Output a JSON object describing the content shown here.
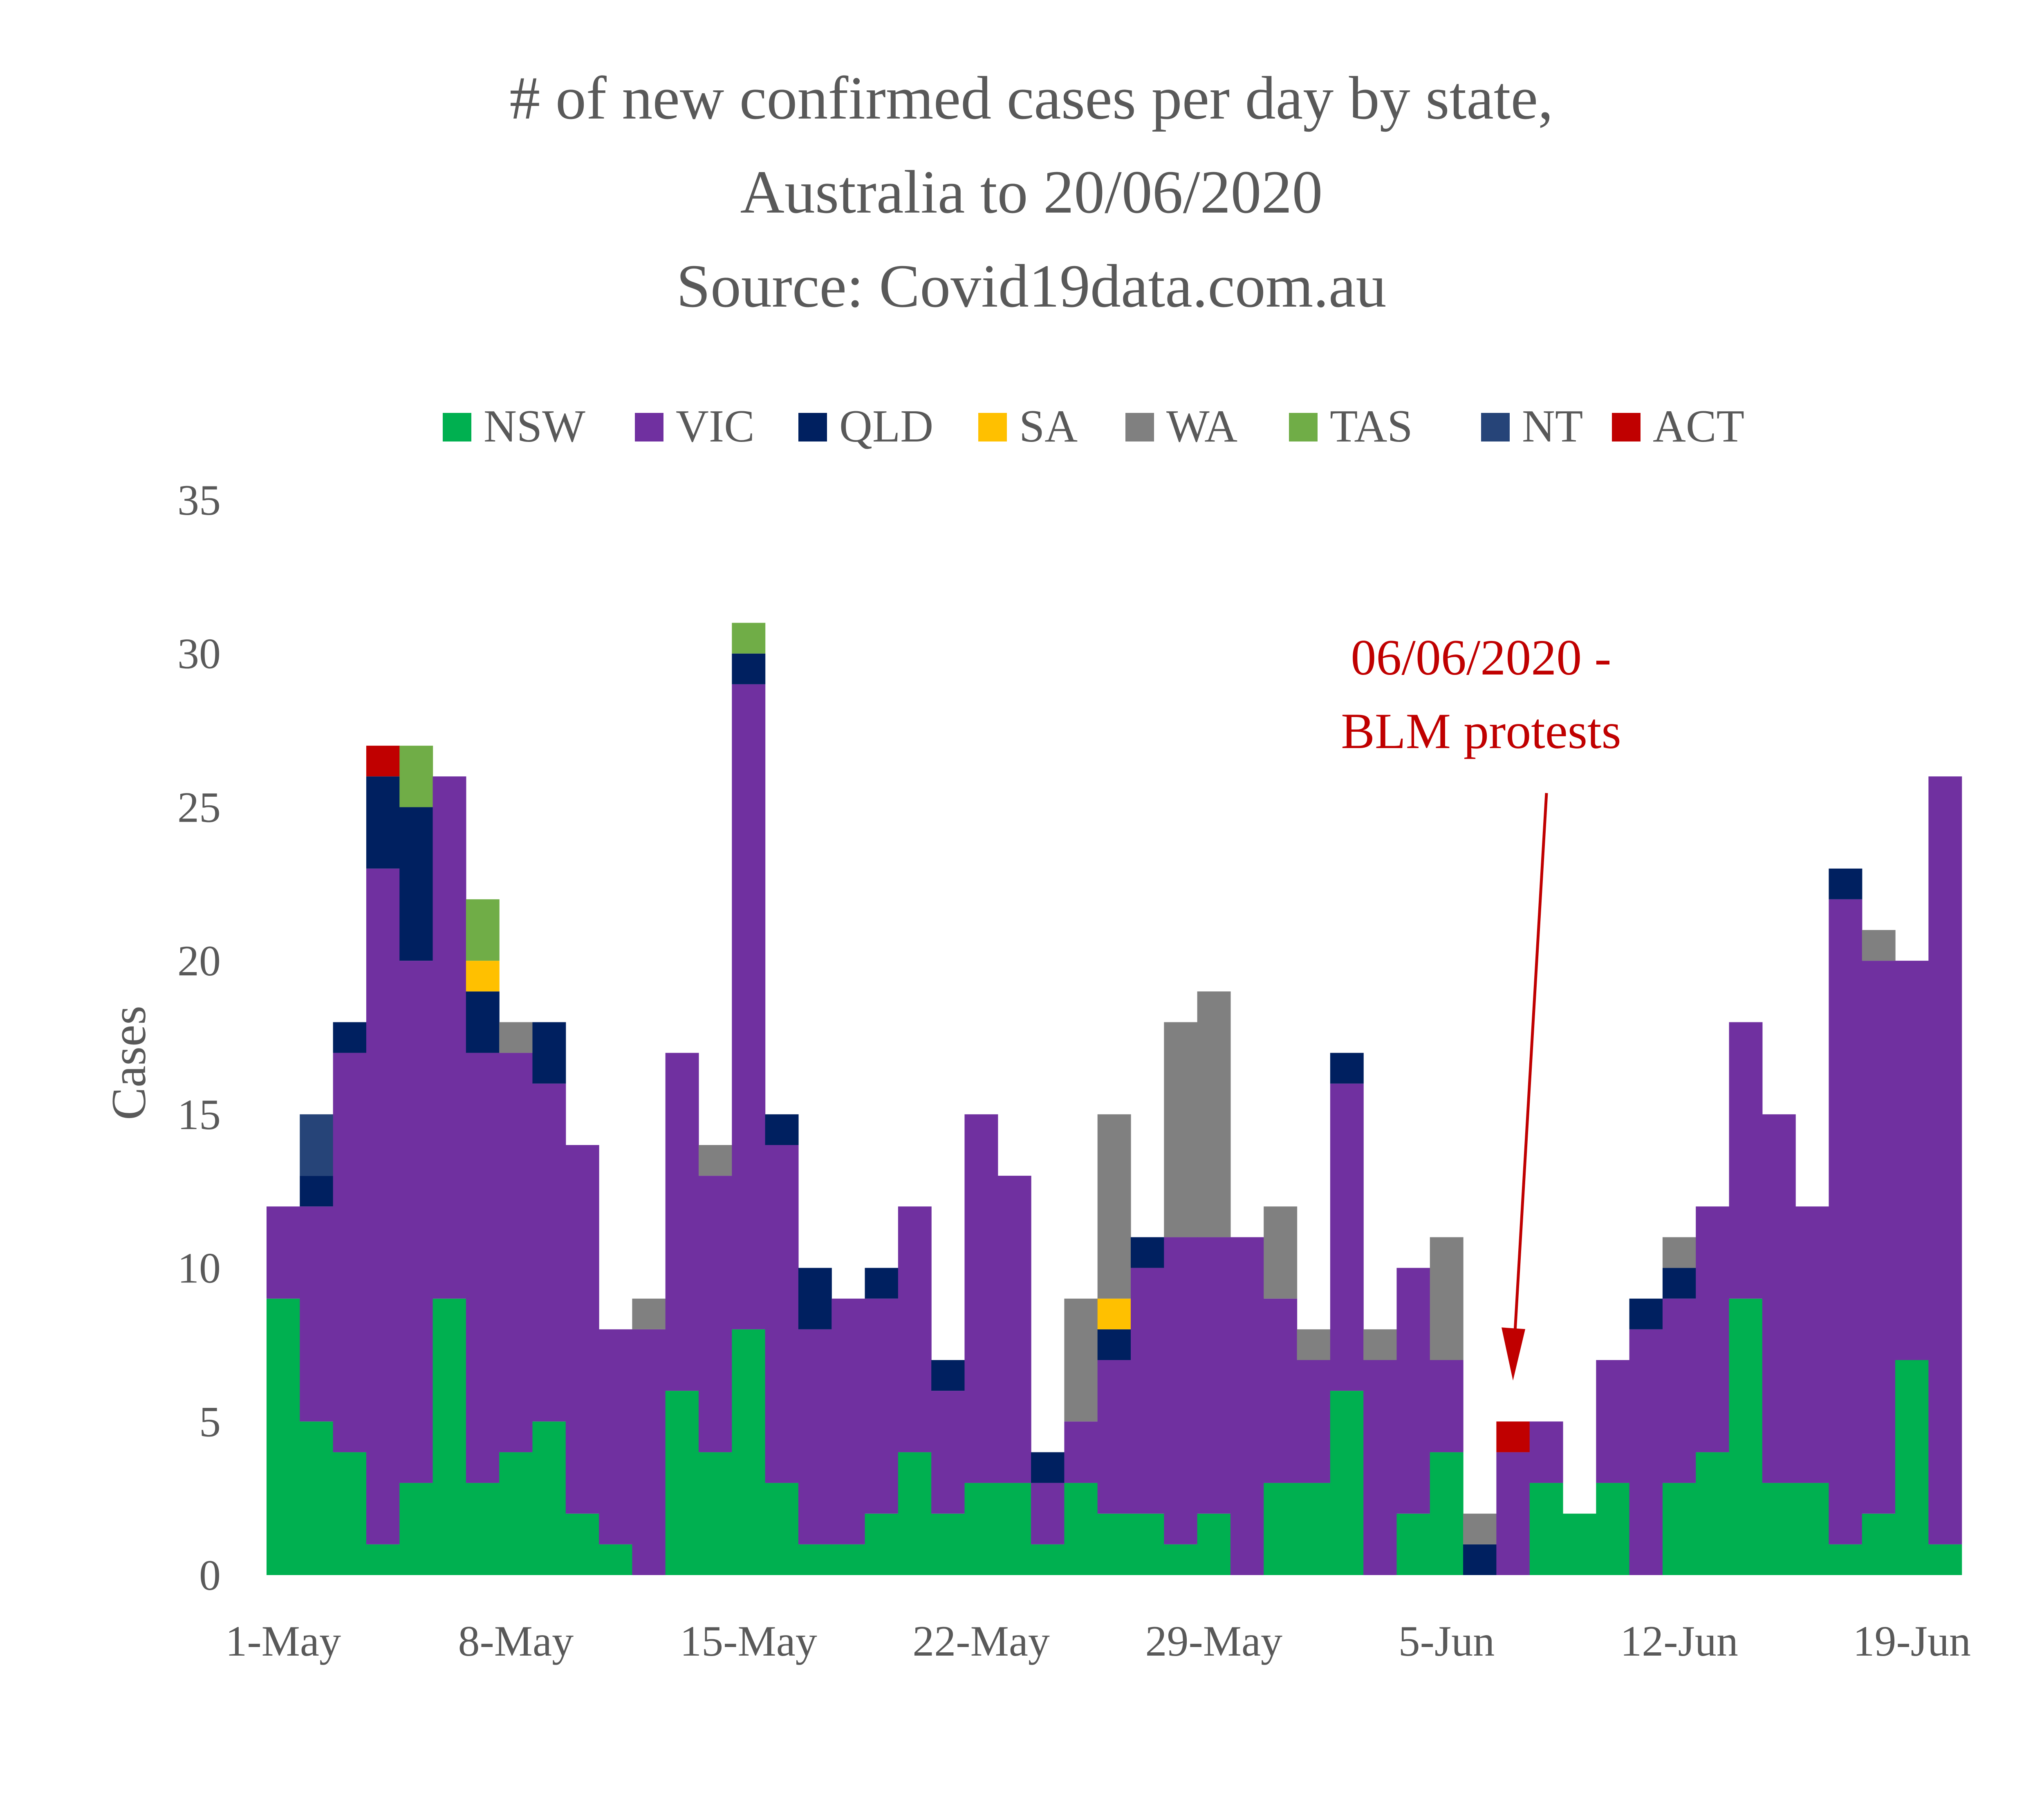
{
  "chart_data": {
    "type": "bar",
    "stacked": true,
    "title_lines": [
      "# of new confirmed cases per day by state,",
      "Australia to 20/06/2020",
      "Source: Covid19data.com.au"
    ],
    "ylabel": "Cases",
    "xlabel": "",
    "ylim": [
      0,
      35
    ],
    "yticks": [
      0,
      5,
      10,
      15,
      20,
      25,
      30,
      35
    ],
    "legend_position": "top",
    "x_tick_labels": [
      "1-May",
      "8-May",
      "15-May",
      "22-May",
      "29-May",
      "5-Jun",
      "12-Jun",
      "19-Jun"
    ],
    "x_tick_day_index": [
      0,
      7,
      14,
      21,
      28,
      35,
      42,
      49
    ],
    "categories": [
      "1-May",
      "2-May",
      "3-May",
      "4-May",
      "5-May",
      "6-May",
      "7-May",
      "8-May",
      "9-May",
      "10-May",
      "11-May",
      "12-May",
      "13-May",
      "14-May",
      "15-May",
      "16-May",
      "17-May",
      "18-May",
      "19-May",
      "20-May",
      "21-May",
      "22-May",
      "23-May",
      "24-May",
      "25-May",
      "26-May",
      "27-May",
      "28-May",
      "29-May",
      "30-May",
      "31-May",
      "1-Jun",
      "2-Jun",
      "3-Jun",
      "4-Jun",
      "5-Jun",
      "6-Jun",
      "7-Jun",
      "8-Jun",
      "9-Jun",
      "10-Jun",
      "11-Jun",
      "12-Jun",
      "13-Jun",
      "14-Jun",
      "15-Jun",
      "16-Jun",
      "17-Jun",
      "18-Jun",
      "19-Jun",
      "20-Jun",
      "21-Jun"
    ],
    "series": [
      {
        "name": "NSW",
        "color": "#00b050",
        "values": [
          9,
          5,
          4,
          1,
          3,
          9,
          3,
          4,
          5,
          2,
          1,
          0,
          6,
          4,
          8,
          3,
          1,
          1,
          2,
          4,
          2,
          3,
          3,
          1,
          3,
          2,
          2,
          1,
          2,
          0,
          3,
          3,
          6,
          0,
          2,
          4,
          0,
          0,
          3,
          2,
          3,
          0,
          3,
          4,
          9,
          3,
          3,
          1,
          2,
          7,
          1,
          0
        ]
      },
      {
        "name": "VIC",
        "color": "#7030a0",
        "values": [
          3,
          7,
          13,
          22,
          17,
          17,
          14,
          13,
          11,
          12,
          7,
          8,
          11,
          9,
          21,
          11,
          7,
          8,
          7,
          8,
          4,
          12,
          10,
          2,
          2,
          5,
          8,
          10,
          9,
          11,
          6,
          4,
          10,
          7,
          8,
          3,
          0,
          4,
          2,
          0,
          4,
          8,
          6,
          8,
          9,
          12,
          9,
          21,
          18,
          13,
          25,
          0
        ]
      },
      {
        "name": "QLD",
        "color": "#002060",
        "values": [
          0,
          1,
          1,
          3,
          5,
          0,
          2,
          0,
          2,
          0,
          0,
          0,
          0,
          0,
          1,
          1,
          2,
          0,
          1,
          0,
          1,
          0,
          0,
          1,
          0,
          1,
          1,
          0,
          0,
          0,
          0,
          0,
          1,
          0,
          0,
          0,
          1,
          0,
          0,
          0,
          0,
          1,
          1,
          0,
          0,
          0,
          0,
          1,
          0,
          0,
          0,
          0
        ]
      },
      {
        "name": "SA",
        "color": "#ffc000",
        "values": [
          0,
          0,
          0,
          0,
          0,
          0,
          1,
          0,
          0,
          0,
          0,
          0,
          0,
          0,
          0,
          0,
          0,
          0,
          0,
          0,
          0,
          0,
          0,
          0,
          0,
          1,
          0,
          0,
          0,
          0,
          0,
          0,
          0,
          0,
          0,
          0,
          0,
          0,
          0,
          0,
          0,
          0,
          0,
          0,
          0,
          0,
          0,
          0,
          0,
          0,
          0,
          0
        ]
      },
      {
        "name": "WA",
        "color": "#808080",
        "values": [
          0,
          0,
          0,
          0,
          0,
          0,
          0,
          1,
          0,
          0,
          0,
          1,
          0,
          1,
          0,
          0,
          0,
          0,
          0,
          0,
          0,
          0,
          0,
          0,
          4,
          6,
          0,
          7,
          8,
          0,
          3,
          1,
          0,
          1,
          0,
          4,
          1,
          0,
          0,
          0,
          0,
          0,
          1,
          0,
          0,
          0,
          0,
          0,
          1,
          0,
          0,
          0
        ]
      },
      {
        "name": "TAS",
        "color": "#70ad47",
        "values": [
          0,
          0,
          0,
          0,
          2,
          0,
          2,
          0,
          0,
          0,
          0,
          0,
          0,
          0,
          1,
          0,
          0,
          0,
          0,
          0,
          0,
          0,
          0,
          0,
          0,
          0,
          0,
          0,
          0,
          0,
          0,
          0,
          0,
          0,
          0,
          0,
          0,
          0,
          0,
          0,
          0,
          0,
          0,
          0,
          0,
          0,
          0,
          0,
          0,
          0,
          0,
          0
        ]
      },
      {
        "name": "NT",
        "color": "#264478",
        "values": [
          0,
          2,
          0,
          0,
          0,
          0,
          0,
          0,
          0,
          0,
          0,
          0,
          0,
          0,
          0,
          0,
          0,
          0,
          0,
          0,
          0,
          0,
          0,
          0,
          0,
          0,
          0,
          0,
          0,
          0,
          0,
          0,
          0,
          0,
          0,
          0,
          0,
          0,
          0,
          0,
          0,
          0,
          0,
          0,
          0,
          0,
          0,
          0,
          0,
          0,
          0,
          0
        ]
      },
      {
        "name": "ACT",
        "color": "#c00000",
        "values": [
          0,
          0,
          0,
          1,
          0,
          0,
          0,
          0,
          0,
          0,
          0,
          0,
          0,
          0,
          0,
          0,
          0,
          0,
          0,
          0,
          0,
          0,
          0,
          0,
          0,
          0,
          0,
          0,
          0,
          0,
          0,
          0,
          0,
          0,
          0,
          0,
          0,
          1,
          0,
          0,
          0,
          0,
          0,
          0,
          0,
          0,
          0,
          0,
          0,
          0,
          0,
          0
        ]
      }
    ],
    "annotation": {
      "lines": [
        "06/06/2020 -",
        "BLM protests"
      ],
      "target_category": "7-Jun",
      "target_value": 5,
      "color": "#c00000"
    },
    "grid": false
  }
}
